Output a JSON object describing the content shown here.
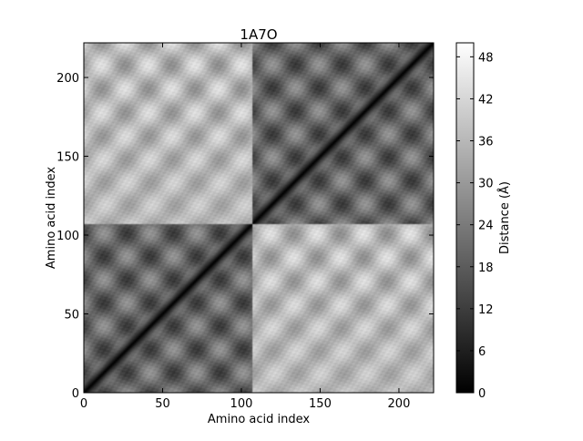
{
  "chart_data": {
    "type": "heatmap",
    "title": "1A7O",
    "xlabel": "Amino acid index",
    "ylabel": "Amino acid index",
    "colorbar_label": "Distance (Å)",
    "colormap": "gray",
    "n_residues": 222,
    "chain_break": 107,
    "xlim": [
      0,
      222
    ],
    "ylim": [
      0,
      222
    ],
    "x_ticks": [
      0,
      50,
      100,
      150,
      200
    ],
    "y_ticks": [
      0,
      50,
      100,
      150,
      200
    ],
    "value_range": [
      0,
      50
    ],
    "colorbar_ticks": [
      0,
      6,
      12,
      18,
      24,
      30,
      36,
      42,
      48
    ],
    "description_values": {
      "diagonal_distance": 0,
      "intra_chain_typical_range": [
        4,
        30
      ],
      "inter_chain_typical_range": [
        25,
        48
      ]
    }
  }
}
